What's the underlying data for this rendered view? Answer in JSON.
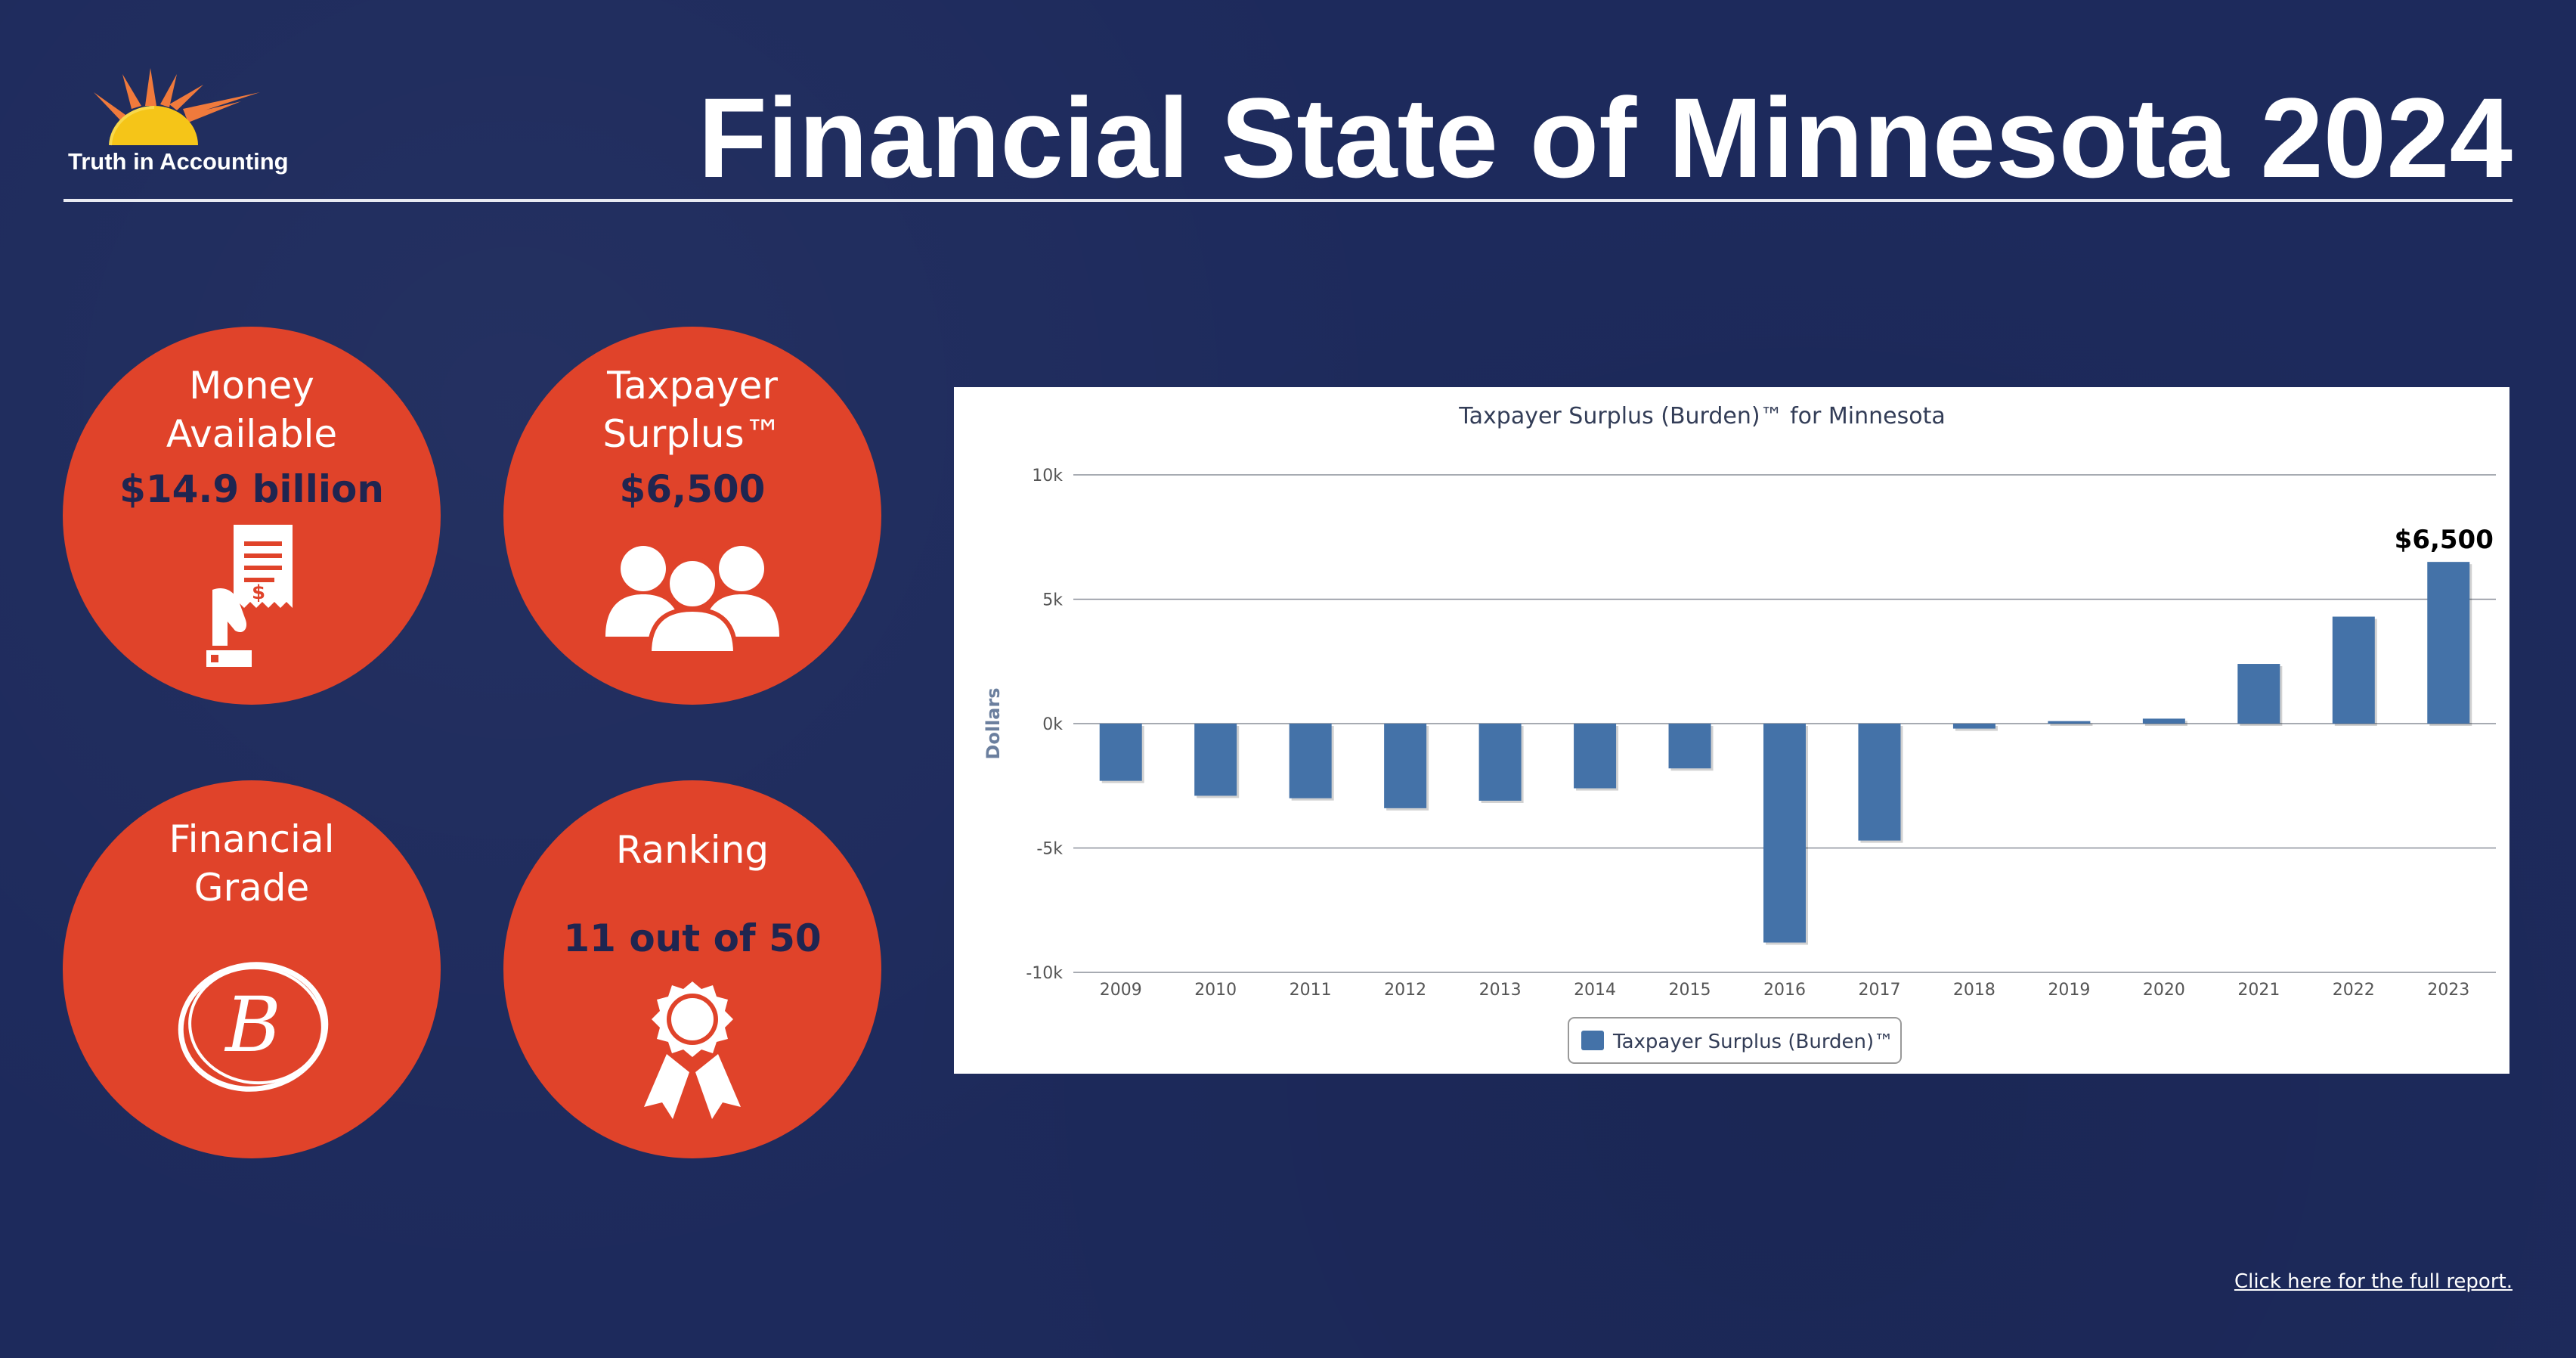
{
  "brand": {
    "logo_text": "Truth in Accounting"
  },
  "title": "Financial State of Minnesota 2024",
  "stats": {
    "money": {
      "label_line1": "Money",
      "label_line2": "Available",
      "value": "$14.9 billion"
    },
    "surplus": {
      "label_line1": "Taxpayer",
      "label_line2": "Surplus™",
      "value": "$6,500"
    },
    "grade": {
      "label_line1": "Financial",
      "label_line2": "Grade",
      "value": "B"
    },
    "ranking": {
      "label": "Ranking",
      "value": "11 out of 50"
    }
  },
  "colors": {
    "background": "#1d2a5c",
    "circle": "#e0432a",
    "bar": "#4472a8",
    "value_text": "#1f2550"
  },
  "icons": [
    "receipt-hand-icon",
    "people-group-icon",
    "grade-b-icon",
    "award-ribbon-icon",
    "sun-logo-icon"
  ],
  "chart_data": {
    "type": "bar",
    "title": "Taxpayer Surplus (Burden)™ for Minnesota",
    "ylabel": "Dollars",
    "xlabel": "",
    "categories": [
      "2009",
      "2010",
      "2011",
      "2012",
      "2013",
      "2014",
      "2015",
      "2016",
      "2017",
      "2018",
      "2019",
      "2020",
      "2021",
      "2022",
      "2023"
    ],
    "series": [
      {
        "name": "Taxpayer Surplus (Burden)™",
        "values": [
          -2300,
          -2900,
          -3000,
          -3400,
          -3100,
          -2600,
          -1800,
          -8800,
          -4700,
          -200,
          100,
          200,
          2400,
          4300,
          6500
        ]
      }
    ],
    "ylim": [
      -10000,
      10000
    ],
    "yticks": [
      {
        "value": 10000,
        "label": "10k"
      },
      {
        "value": 5000,
        "label": "5k"
      },
      {
        "value": 0,
        "label": "0k"
      },
      {
        "value": -5000,
        "label": "-5k"
      },
      {
        "value": -10000,
        "label": "-10k"
      }
    ],
    "annotations": [
      {
        "category": "2023",
        "text": "$6,500"
      }
    ],
    "grid": true,
    "legend": "bottom-center"
  },
  "footer": {
    "link_text": "Click here for the full report."
  }
}
